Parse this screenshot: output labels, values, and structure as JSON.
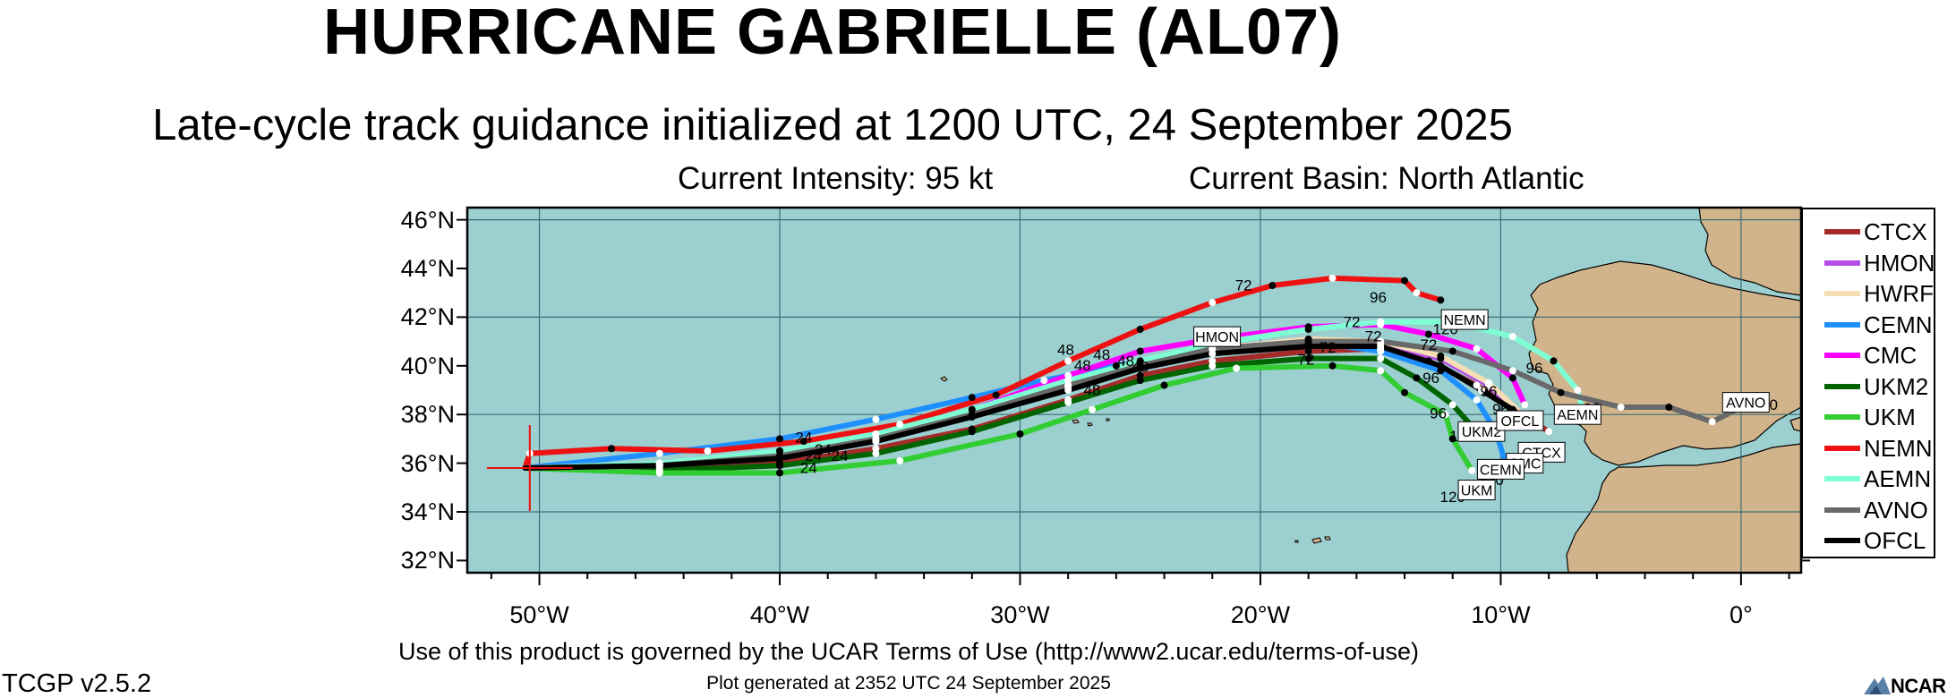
{
  "title": "HURRICANE GABRIELLE (AL07)",
  "subtitle": "Late-cycle track guidance initialized at 1200 UTC, 24 September 2025",
  "current_intensity": "Current Intensity: 95 kt",
  "current_basin": "Current Basin: North Atlantic",
  "terms": "Use of this product is governed by the UCAR Terms of Use (http://www2.ucar.edu/terms-of-use)",
  "generated": "Plot generated at 2352 UTC   24 September 2025",
  "version": "TCGP v2.5.2",
  "logo_text": "NCAR",
  "colors": {
    "ocean": "#9ccfd0",
    "land": "#d2b48c",
    "grid": "#3a6f75"
  },
  "chart_data": {
    "type": "map",
    "lon_range": [
      -53.0,
      2.5
    ],
    "lat_range": [
      31.5,
      46.5
    ],
    "lat_ticks": [
      {
        "value": 32,
        "label": "32°N"
      },
      {
        "value": 34,
        "label": "34°N"
      },
      {
        "value": 36,
        "label": "36°N"
      },
      {
        "value": 38,
        "label": "38°N"
      },
      {
        "value": 40,
        "label": "40°N"
      },
      {
        "value": 42,
        "label": "42°N"
      },
      {
        "value": 44,
        "label": "44°N"
      },
      {
        "value": 46,
        "label": "46°N"
      }
    ],
    "lon_ticks": [
      {
        "value": -50,
        "label": "50°W"
      },
      {
        "value": -40,
        "label": "40°W"
      },
      {
        "value": -30,
        "label": "30°W"
      },
      {
        "value": -20,
        "label": "20°W"
      },
      {
        "value": -10,
        "label": "10°W"
      },
      {
        "value": 0,
        "label": "0°"
      }
    ],
    "current_position": {
      "lon": -50.4,
      "lat": 35.8
    },
    "series": [
      {
        "name": "CTCX",
        "color": "#a52a2a",
        "points": [
          [
            -50.6,
            35.8
          ],
          [
            -45,
            35.8
          ],
          [
            -40,
            36.0
          ],
          [
            -36,
            36.6
          ],
          [
            -32,
            37.4
          ],
          [
            -28,
            38.6
          ],
          [
            -25,
            39.6
          ],
          [
            -22,
            40.2
          ],
          [
            -18,
            40.6
          ],
          [
            -15,
            40.7
          ],
          [
            -13,
            40.2
          ],
          [
            -11,
            39.2
          ],
          [
            -9.5,
            38.2
          ],
          [
            -8,
            37.3
          ]
        ]
      },
      {
        "name": "HMON",
        "color": "#b44ee8",
        "points": [
          [
            -50.6,
            35.8
          ],
          [
            -45,
            35.9
          ],
          [
            -40,
            36.2
          ],
          [
            -36,
            36.9
          ],
          [
            -32,
            37.9
          ],
          [
            -28,
            39.1
          ],
          [
            -25,
            39.9
          ],
          [
            -22,
            40.5
          ],
          [
            -18,
            40.9
          ],
          [
            -15,
            40.9
          ],
          [
            -12.5,
            40.3
          ],
          [
            -10.5,
            39.2
          ],
          [
            -9.2,
            38.0
          ]
        ]
      },
      {
        "name": "HWRF",
        "color": "#f5deb3",
        "points": [
          [
            -50.6,
            35.8
          ],
          [
            -45,
            35.9
          ],
          [
            -40,
            36.3
          ],
          [
            -36,
            37.0
          ],
          [
            -32,
            38.0
          ],
          [
            -28,
            39.2
          ],
          [
            -25,
            40.0
          ],
          [
            -22,
            40.7
          ],
          [
            -18,
            41.1
          ],
          [
            -15,
            41.0
          ],
          [
            -12.5,
            40.4
          ],
          [
            -10.5,
            39.3
          ],
          [
            -9,
            37.9
          ]
        ]
      },
      {
        "name": "CEMN",
        "color": "#1e90ff",
        "points": [
          [
            -50.6,
            35.8
          ],
          [
            -45,
            36.4
          ],
          [
            -40,
            37.0
          ],
          [
            -36,
            37.8
          ],
          [
            -32,
            38.7
          ],
          [
            -29,
            39.4
          ],
          [
            -26,
            40.0
          ],
          [
            -22,
            40.7
          ],
          [
            -18,
            41.0
          ],
          [
            -15,
            40.6
          ],
          [
            -12.5,
            39.8
          ],
          [
            -11,
            38.6
          ],
          [
            -10.2,
            37.3
          ],
          [
            -9.8,
            36.0
          ]
        ]
      },
      {
        "name": "CMC",
        "color": "#ff00ff",
        "points": [
          [
            -50.6,
            35.8
          ],
          [
            -45,
            36.0
          ],
          [
            -40,
            36.5
          ],
          [
            -36,
            37.2
          ],
          [
            -32,
            38.2
          ],
          [
            -28,
            39.6
          ],
          [
            -25,
            40.6
          ],
          [
            -22,
            41.1
          ],
          [
            -18,
            41.6
          ],
          [
            -15,
            41.7
          ],
          [
            -13,
            41.3
          ],
          [
            -11,
            40.7
          ],
          [
            -9.5,
            39.5
          ],
          [
            -9,
            38.4
          ]
        ]
      },
      {
        "name": "UKM2",
        "color": "#006400",
        "points": [
          [
            -50.6,
            35.8
          ],
          [
            -45,
            35.7
          ],
          [
            -40,
            35.9
          ],
          [
            -36,
            36.4
          ],
          [
            -32,
            37.3
          ],
          [
            -28,
            38.5
          ],
          [
            -25,
            39.4
          ],
          [
            -22,
            40.0
          ],
          [
            -18,
            40.3
          ],
          [
            -15,
            40.3
          ],
          [
            -13.5,
            39.5
          ],
          [
            -12,
            38.4
          ],
          [
            -11,
            37.3
          ]
        ]
      },
      {
        "name": "UKM",
        "color": "#32cd32",
        "points": [
          [
            -50.6,
            35.8
          ],
          [
            -45,
            35.6
          ],
          [
            -40,
            35.6
          ],
          [
            -35,
            36.1
          ],
          [
            -30,
            37.2
          ],
          [
            -27,
            38.2
          ],
          [
            -24,
            39.2
          ],
          [
            -21,
            39.9
          ],
          [
            -17,
            40.0
          ],
          [
            -15,
            39.8
          ],
          [
            -14,
            38.9
          ],
          [
            -12.3,
            38.0
          ],
          [
            -12.0,
            37.0
          ],
          [
            -11.2,
            35.7
          ]
        ]
      },
      {
        "name": "NEMN",
        "color": "#ee1111",
        "points": [
          [
            -50.6,
            35.8
          ],
          [
            -50.4,
            36.4
          ],
          [
            -47,
            36.6
          ],
          [
            -43,
            36.5
          ],
          [
            -39,
            36.9
          ],
          [
            -35,
            37.6
          ],
          [
            -31,
            38.8
          ],
          [
            -28,
            40.2
          ],
          [
            -25,
            41.5
          ],
          [
            -22,
            42.6
          ],
          [
            -19.5,
            43.3
          ],
          [
            -17,
            43.6
          ],
          [
            -14,
            43.5
          ],
          [
            -13.5,
            43.0
          ],
          [
            -12.5,
            42.7
          ]
        ]
      },
      {
        "name": "AEMN",
        "color": "#7fffd4",
        "points": [
          [
            -50.6,
            35.8
          ],
          [
            -45,
            36.0
          ],
          [
            -40,
            36.5
          ],
          [
            -36,
            37.2
          ],
          [
            -32,
            38.2
          ],
          [
            -28,
            39.4
          ],
          [
            -25,
            40.2
          ],
          [
            -22,
            40.9
          ],
          [
            -18,
            41.5
          ],
          [
            -15,
            41.8
          ],
          [
            -12,
            41.8
          ],
          [
            -9.5,
            41.2
          ],
          [
            -7.8,
            40.2
          ],
          [
            -6.8,
            39.0
          ],
          [
            -6.5,
            37.8
          ]
        ]
      },
      {
        "name": "AVNO",
        "color": "#696969",
        "points": [
          [
            -50.6,
            35.8
          ],
          [
            -45,
            35.9
          ],
          [
            -40,
            36.3
          ],
          [
            -36,
            37.0
          ],
          [
            -32,
            38.0
          ],
          [
            -28,
            39.2
          ],
          [
            -25,
            40.0
          ],
          [
            -22,
            40.7
          ],
          [
            -18,
            41.0
          ],
          [
            -15,
            41.0
          ],
          [
            -12,
            40.6
          ],
          [
            -9.5,
            39.8
          ],
          [
            -7.5,
            38.9
          ],
          [
            -5,
            38.3
          ],
          [
            -3,
            38.3
          ],
          [
            -1.2,
            37.7
          ],
          [
            0.4,
            38.5
          ]
        ]
      },
      {
        "name": "OFCL",
        "color": "#000000",
        "points": [
          [
            -50.6,
            35.8
          ],
          [
            -45,
            35.9
          ],
          [
            -40,
            36.2
          ],
          [
            -36,
            36.9
          ],
          [
            -32,
            37.9
          ],
          [
            -28,
            39.0
          ],
          [
            -25,
            39.9
          ],
          [
            -22,
            40.5
          ],
          [
            -18,
            40.8
          ],
          [
            -15,
            40.8
          ],
          [
            -12.5,
            40.0
          ],
          [
            -10.8,
            39.0
          ],
          [
            -9.5,
            38.2
          ],
          [
            -8.5,
            37.5
          ]
        ]
      }
    ],
    "track_labels": [
      {
        "text": "HMON",
        "lon": -21.8,
        "lat": 41.2
      },
      {
        "text": "NEMN",
        "lon": -11.5,
        "lat": 41.9
      },
      {
        "text": "AVNO",
        "lon": 0.2,
        "lat": 38.5
      },
      {
        "text": "AEMN",
        "lon": -6.8,
        "lat": 38.0
      },
      {
        "text": "UKM2",
        "lon": -10.8,
        "lat": 37.3
      },
      {
        "text": "OFCL",
        "lon": -9.2,
        "lat": 37.75
      },
      {
        "text": "CTCX",
        "lon": -8.3,
        "lat": 36.45
      },
      {
        "text": "CMC",
        "lon": -9.0,
        "lat": 36.0
      },
      {
        "text": "CEMN",
        "lon": -10.0,
        "lat": 35.75
      },
      {
        "text": "UKM",
        "lon": -11.0,
        "lat": 34.9
      }
    ],
    "hour_labels": [
      {
        "text": "24",
        "lon": -39.0,
        "lat": 36.85
      },
      {
        "text": "24",
        "lon": -38.6,
        "lat": 36.1
      },
      {
        "text": "24",
        "lon": -38.8,
        "lat": 35.6
      },
      {
        "text": "24",
        "lon": -38.2,
        "lat": 36.35
      },
      {
        "text": "24",
        "lon": -37.5,
        "lat": 36.1
      },
      {
        "text": "48",
        "lon": -28.1,
        "lat": 40.45
      },
      {
        "text": "48",
        "lon": -26.6,
        "lat": 40.25
      },
      {
        "text": "48",
        "lon": -27.4,
        "lat": 39.8
      },
      {
        "text": "48",
        "lon": -25.6,
        "lat": 40.0
      },
      {
        "text": "48",
        "lon": -27.0,
        "lat": 38.8
      },
      {
        "text": "48",
        "lon": -25.0,
        "lat": 39.75
      },
      {
        "text": "72",
        "lon": -20.7,
        "lat": 43.1
      },
      {
        "text": "72",
        "lon": -16.2,
        "lat": 41.6
      },
      {
        "text": "72",
        "lon": -15.3,
        "lat": 41.0
      },
      {
        "text": "72",
        "lon": -17.2,
        "lat": 40.55
      },
      {
        "text": "72",
        "lon": -18.1,
        "lat": 40.05
      },
      {
        "text": "72",
        "lon": -13.0,
        "lat": 40.65
      },
      {
        "text": "96",
        "lon": -15.1,
        "lat": 42.6
      },
      {
        "text": "96",
        "lon": -12.9,
        "lat": 39.3
      },
      {
        "text": "96",
        "lon": -10.5,
        "lat": 38.75
      },
      {
        "text": "96",
        "lon": -8.6,
        "lat": 39.7
      },
      {
        "text": "96",
        "lon": -12.6,
        "lat": 37.85
      },
      {
        "text": "96",
        "lon": -10.0,
        "lat": 38.0
      },
      {
        "text": "96",
        "lon": -6.2,
        "lat": 38.05
      },
      {
        "text": "120",
        "lon": -12.3,
        "lat": 41.3
      },
      {
        "text": "120",
        "lon": -11.6,
        "lat": 36.9
      },
      {
        "text": "120",
        "lon": -12.0,
        "lat": 34.4
      },
      {
        "text": "120",
        "lon": -10.4,
        "lat": 35.1
      },
      {
        "text": "120",
        "lon": -9.6,
        "lat": 35.4
      },
      {
        "text": "120",
        "lon": -9.4,
        "lat": 37.6
      },
      {
        "text": "120",
        "lon": 1.0,
        "lat": 38.2
      }
    ]
  },
  "legend": [
    {
      "name": "CTCX",
      "color": "#a52a2a"
    },
    {
      "name": "HMON",
      "color": "#b44ee8"
    },
    {
      "name": "HWRF",
      "color": "#f5deb3"
    },
    {
      "name": "CEMN",
      "color": "#1e90ff"
    },
    {
      "name": "CMC",
      "color": "#ff00ff"
    },
    {
      "name": "UKM2",
      "color": "#006400"
    },
    {
      "name": "UKM",
      "color": "#32cd32"
    },
    {
      "name": "NEMN",
      "color": "#ee1111"
    },
    {
      "name": "AEMN",
      "color": "#7fffd4"
    },
    {
      "name": "AVNO",
      "color": "#696969"
    },
    {
      "name": "OFCL",
      "color": "#000000"
    }
  ]
}
